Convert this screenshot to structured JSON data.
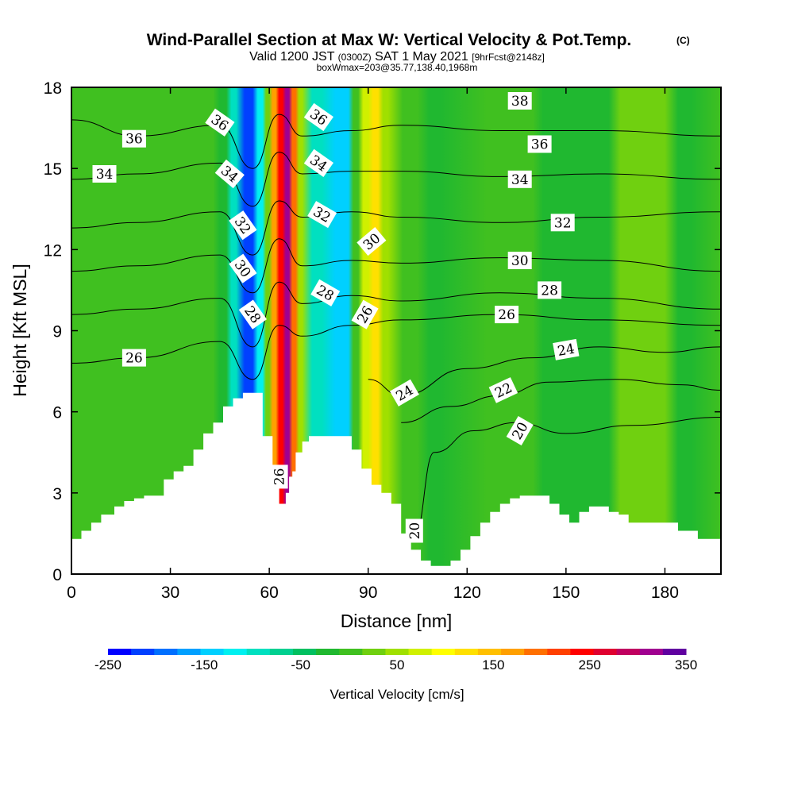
{
  "header": {
    "title": "Wind-Parallel Section at Max W: Vertical Velocity & Pot.Temp.",
    "title_mark": "(C)",
    "valid_prefix": "Valid 1200 JST",
    "valid_zulu": "(0300Z)",
    "valid_date": "SAT 1 May 2021",
    "forecast_note": "[9hrFcst@2148z]",
    "box_info": "boxWmax=203@35.77,138.40,1968m"
  },
  "chart_data": {
    "type": "heatmap",
    "xlabel": "Distance [nm]",
    "ylabel": "Height [Kft MSL]",
    "xlim": [
      0,
      197
    ],
    "ylim": [
      0,
      18
    ],
    "x_ticks": [
      "0",
      "30",
      "60",
      "90",
      "120",
      "150",
      "180"
    ],
    "y_ticks": [
      "0",
      "3",
      "6",
      "9",
      "12",
      "15",
      "18"
    ],
    "colorbar": {
      "label": "Vertical Velocity [cm/s]",
      "ticks": [
        "-250",
        "-150",
        "-50",
        "50",
        "150",
        "250",
        "350"
      ],
      "range": [
        -250,
        350
      ],
      "step": 25,
      "colors": [
        "#0000ff",
        "#0040ff",
        "#0070ff",
        "#00a0ff",
        "#00d0ff",
        "#00f0f0",
        "#00e0c0",
        "#00d090",
        "#00c060",
        "#20b830",
        "#40c020",
        "#70d010",
        "#a0e000",
        "#d0f000",
        "#ffff00",
        "#ffe000",
        "#ffc000",
        "#ffa000",
        "#ff7000",
        "#ff4000",
        "#ff0000",
        "#e00030",
        "#c00060",
        "#a00090",
        "#6000a0"
      ]
    },
    "vertical_velocity_bands": [
      {
        "x": [
          0,
          197
        ],
        "w": 20
      },
      {
        "x": [
          28,
          31
        ],
        "w": 0
      },
      {
        "x": [
          43,
          47
        ],
        "w": -10
      },
      {
        "x": [
          47,
          50
        ],
        "w": -100
      },
      {
        "x": [
          50,
          55
        ],
        "w": -220
      },
      {
        "x": [
          55,
          58
        ],
        "w": -120
      },
      {
        "x": [
          58,
          60
        ],
        "w": 40
      },
      {
        "x": [
          60,
          62
        ],
        "w": 180
      },
      {
        "x": [
          62,
          64
        ],
        "w": 260
      },
      {
        "x": [
          64,
          66
        ],
        "w": 330
      },
      {
        "x": [
          66,
          68
        ],
        "w": 200
      },
      {
        "x": [
          68,
          70
        ],
        "w": 60
      },
      {
        "x": [
          70,
          76
        ],
        "w": -80
      },
      {
        "x": [
          76,
          84
        ],
        "w": -130
      },
      {
        "x": [
          84,
          87
        ],
        "w": 20
      },
      {
        "x": [
          87,
          90
        ],
        "w": 90
      },
      {
        "x": [
          90,
          93
        ],
        "w": 140
      },
      {
        "x": [
          93,
          96
        ],
        "w": 70
      },
      {
        "x": [
          96,
          105
        ],
        "w": 20
      },
      {
        "x": [
          105,
          112
        ],
        "w": -10
      },
      {
        "x": [
          112,
          140
        ],
        "w": 20
      },
      {
        "x": [
          140,
          146
        ],
        "w": -10
      },
      {
        "x": [
          163,
          170
        ],
        "w": 40
      },
      {
        "x": [
          180,
          188
        ],
        "w": -10
      }
    ],
    "potential_temperature_contours": [
      {
        "level": 36,
        "label": "36",
        "x": [
          0,
          20,
          45,
          55,
          63,
          70,
          85,
          100,
          130,
          160,
          197
        ],
        "y": [
          16.8,
          16.2,
          16.6,
          15.0,
          17.0,
          16.2,
          16.4,
          16.6,
          16.4,
          16.4,
          16.2
        ]
      },
      {
        "level": 34,
        "label": "34",
        "x": [
          0,
          20,
          45,
          55,
          63,
          70,
          85,
          100,
          130,
          160,
          197
        ],
        "y": [
          14.6,
          14.8,
          15.2,
          13.6,
          15.6,
          14.8,
          14.9,
          14.9,
          14.7,
          14.8,
          14.6
        ]
      },
      {
        "level": 32,
        "label": "32",
        "x": [
          0,
          20,
          45,
          55,
          63,
          70,
          85,
          100,
          130,
          160,
          197
        ],
        "y": [
          12.8,
          13.0,
          13.4,
          11.8,
          13.8,
          13.2,
          13.4,
          13.2,
          13.0,
          13.2,
          13.4
        ]
      },
      {
        "level": 30,
        "label": "30",
        "x": [
          0,
          20,
          45,
          55,
          63,
          70,
          85,
          100,
          130,
          160,
          197
        ],
        "y": [
          11.2,
          11.4,
          11.8,
          10.4,
          12.4,
          11.4,
          11.6,
          11.5,
          11.7,
          11.6,
          11.2
        ]
      },
      {
        "level": 28,
        "label": "28",
        "x": [
          0,
          20,
          45,
          55,
          63,
          70,
          85,
          100,
          130,
          160,
          197
        ],
        "y": [
          9.6,
          9.8,
          10.2,
          8.4,
          10.8,
          10.0,
          10.3,
          10.1,
          10.4,
          10.2,
          9.8
        ]
      },
      {
        "level": 26,
        "label": "26",
        "x": [
          0,
          20,
          45,
          55,
          63,
          70,
          85,
          100,
          130,
          160,
          197
        ],
        "y": [
          7.8,
          8.0,
          8.6,
          7.2,
          9.2,
          8.8,
          9.2,
          9.4,
          9.6,
          9.4,
          9.2
        ]
      },
      {
        "level": 24,
        "label": "24",
        "x": [
          90,
          100,
          120,
          140,
          160,
          180,
          197
        ],
        "y": [
          7.2,
          6.6,
          7.6,
          8.0,
          8.4,
          8.2,
          8.4
        ]
      },
      {
        "level": 22,
        "label": "22",
        "x": [
          100,
          115,
          130,
          145,
          165,
          185,
          197
        ],
        "y": [
          5.6,
          6.2,
          6.6,
          7.1,
          7.2,
          7.0,
          6.8
        ]
      },
      {
        "level": 20,
        "label": "20",
        "x": [
          104,
          110,
          122,
          135,
          150,
          170,
          197
        ],
        "y": [
          1.4,
          4.5,
          5.3,
          5.6,
          5.2,
          5.5,
          5.8
        ]
      }
    ],
    "contour_labels": [
      {
        "text": "38",
        "x": 136,
        "y": 17.5,
        "angle": 0
      },
      {
        "text": "36",
        "x": 19,
        "y": 16.1,
        "angle": 0
      },
      {
        "text": "36",
        "x": 45,
        "y": 16.7,
        "angle": 35
      },
      {
        "text": "36",
        "x": 75,
        "y": 16.9,
        "angle": 35
      },
      {
        "text": "36",
        "x": 142,
        "y": 15.9,
        "angle": 0
      },
      {
        "text": "34",
        "x": 10,
        "y": 14.8,
        "angle": 0
      },
      {
        "text": "34",
        "x": 48,
        "y": 14.8,
        "angle": 40
      },
      {
        "text": "34",
        "x": 75,
        "y": 15.2,
        "angle": 35
      },
      {
        "text": "34",
        "x": 136,
        "y": 14.6,
        "angle": 0
      },
      {
        "text": "32",
        "x": 52,
        "y": 12.9,
        "angle": 55
      },
      {
        "text": "32",
        "x": 76,
        "y": 13.3,
        "angle": 30
      },
      {
        "text": "32",
        "x": 149,
        "y": 13.0,
        "angle": 0
      },
      {
        "text": "30",
        "x": 52,
        "y": 11.3,
        "angle": 55
      },
      {
        "text": "30",
        "x": 91,
        "y": 12.3,
        "angle": -40
      },
      {
        "text": "30",
        "x": 136,
        "y": 11.6,
        "angle": 0
      },
      {
        "text": "28",
        "x": 55,
        "y": 9.6,
        "angle": 55
      },
      {
        "text": "28",
        "x": 77,
        "y": 10.4,
        "angle": 30
      },
      {
        "text": "28",
        "x": 145,
        "y": 10.5,
        "angle": 0
      },
      {
        "text": "26",
        "x": 19,
        "y": 8.0,
        "angle": 0
      },
      {
        "text": "26",
        "x": 89,
        "y": 9.6,
        "angle": -60
      },
      {
        "text": "26",
        "x": 132,
        "y": 9.6,
        "angle": 0
      },
      {
        "text": "26",
        "x": 63,
        "y": 3.6,
        "angle": -90
      },
      {
        "text": "24",
        "x": 101,
        "y": 6.7,
        "angle": -30
      },
      {
        "text": "24",
        "x": 150,
        "y": 8.3,
        "angle": -10
      },
      {
        "text": "22",
        "x": 131,
        "y": 6.8,
        "angle": -25
      },
      {
        "text": "20",
        "x": 136,
        "y": 5.3,
        "angle": -60
      },
      {
        "text": "20",
        "x": 104,
        "y": 1.6,
        "angle": -90
      }
    ],
    "terrain_profile": {
      "x": [
        0,
        3,
        6,
        9,
        13,
        16,
        19,
        22,
        25,
        28,
        31,
        34,
        37,
        40,
        43,
        46,
        49,
        52,
        55,
        58,
        61,
        62,
        63,
        64,
        65,
        66,
        67,
        68,
        70,
        72,
        74,
        76,
        79,
        82,
        85,
        88,
        91,
        94,
        97,
        100,
        103,
        106,
        109,
        112,
        115,
        118,
        121,
        124,
        127,
        130,
        133,
        136,
        139,
        142,
        145,
        148,
        151,
        154,
        157,
        160,
        163,
        166,
        169,
        172,
        175,
        178,
        181,
        184,
        187,
        190,
        193,
        197
      ],
      "h": [
        1.3,
        1.6,
        1.9,
        2.2,
        2.5,
        2.7,
        2.8,
        2.9,
        2.9,
        3.5,
        3.8,
        4.0,
        4.6,
        5.2,
        5.6,
        6.2,
        6.5,
        6.7,
        6.7,
        5.1,
        4.0,
        3.9,
        2.6,
        2.6,
        3.0,
        3.6,
        3.8,
        4.5,
        4.9,
        5.1,
        5.1,
        5.1,
        5.1,
        5.1,
        4.6,
        3.9,
        3.3,
        3.0,
        2.6,
        1.5,
        0.9,
        0.5,
        0.3,
        0.3,
        0.5,
        0.9,
        1.4,
        1.9,
        2.3,
        2.6,
        2.8,
        2.9,
        2.9,
        2.9,
        2.6,
        2.2,
        1.9,
        2.3,
        2.5,
        2.5,
        2.3,
        2.2,
        1.9,
        1.9,
        1.9,
        1.9,
        1.9,
        1.6,
        1.6,
        1.3,
        1.3,
        1.3
      ]
    }
  }
}
